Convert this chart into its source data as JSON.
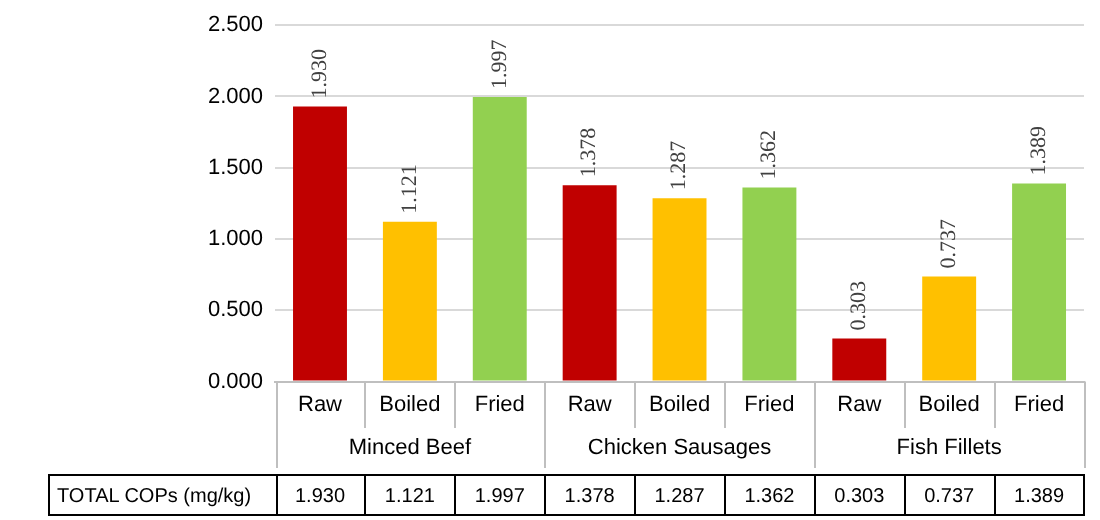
{
  "chart_data": {
    "type": "bar",
    "categories": [
      "Raw",
      "Boiled",
      "Fried",
      "Raw",
      "Boiled",
      "Fried",
      "Raw",
      "Boiled",
      "Fried"
    ],
    "values": [
      1.93,
      1.121,
      1.997,
      1.378,
      1.287,
      1.362,
      0.303,
      0.737,
      1.389
    ],
    "value_labels": [
      "1.930",
      "1.121",
      "1.997",
      "1.378",
      "1.287",
      "1.362",
      "0.303",
      "0.737",
      "1.389"
    ],
    "colors": [
      "#c00000",
      "#ffc000",
      "#92d050",
      "#c00000",
      "#ffc000",
      "#92d050",
      "#c00000",
      "#ffc000",
      "#92d050"
    ],
    "ylim": [
      0,
      2.5
    ],
    "yticks": [
      {
        "value": 0,
        "label": "0.000"
      },
      {
        "value": 0.5,
        "label": "0.500"
      },
      {
        "value": 1,
        "label": "1.000"
      },
      {
        "value": 1.5,
        "label": "1.500"
      },
      {
        "value": 2,
        "label": "2.000"
      },
      {
        "value": 2.5,
        "label": "2.500"
      }
    ],
    "grid": "y",
    "legend": false,
    "annotations": [
      "Minced Beef",
      "Chicken Sausages",
      "Fish Fillets",
      "TOTAL COPs (mg/kg)"
    ]
  }
}
